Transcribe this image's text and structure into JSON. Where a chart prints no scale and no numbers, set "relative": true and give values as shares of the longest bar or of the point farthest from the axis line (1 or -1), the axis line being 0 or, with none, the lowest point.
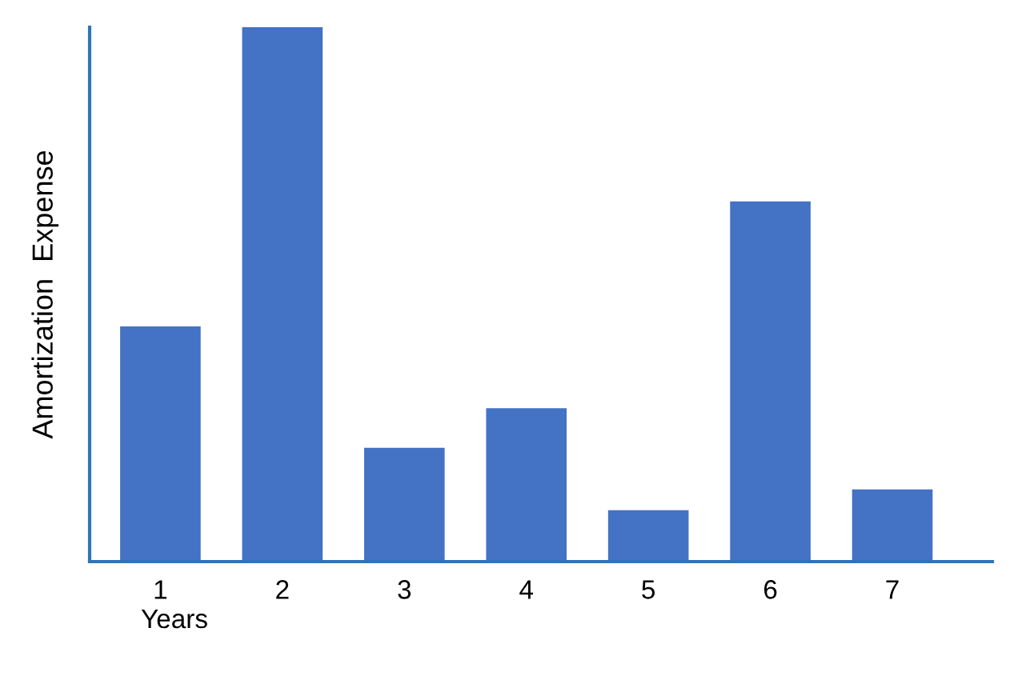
{
  "chart_data": {
    "type": "bar",
    "relative": true,
    "xlabel": "Years",
    "ylabel": "Amortization  Expense",
    "categories": [
      "1",
      "2",
      "3",
      "4",
      "5",
      "6",
      "7"
    ],
    "values": [
      0.44,
      1,
      0.213,
      0.287,
      0.096,
      0.674,
      0.135
    ],
    "color": "#4472c4",
    "grid": false,
    "legend": false
  }
}
